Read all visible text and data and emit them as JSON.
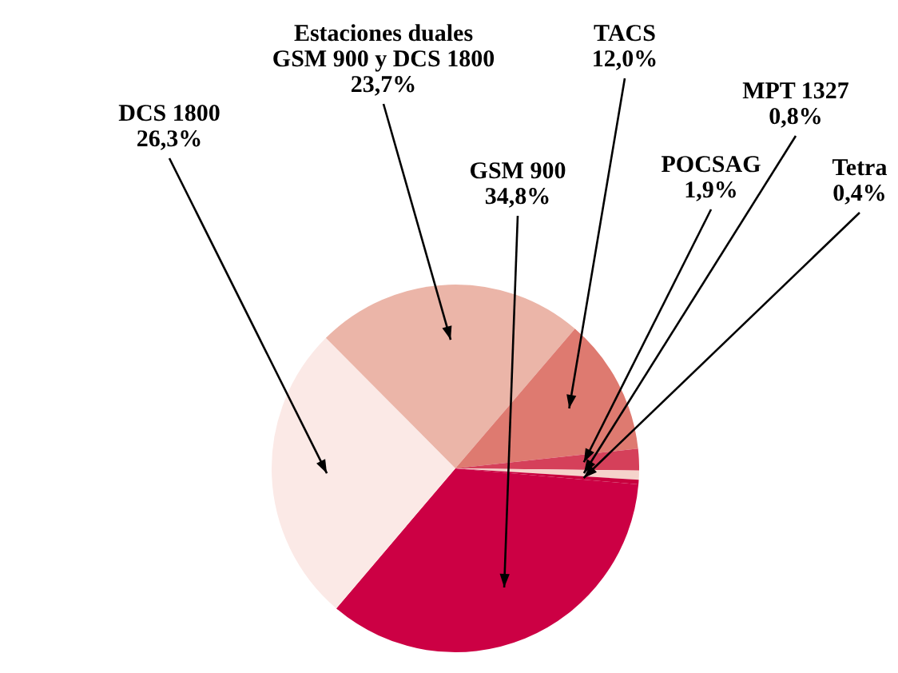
{
  "chart_data": {
    "type": "pie",
    "categories": [
      "GSM 900",
      "DCS 1800",
      "Estaciones duales GSM 900 y DCS 1800",
      "TACS",
      "POCSAG",
      "MPT 1327",
      "Tetra"
    ],
    "values": [
      34.8,
      26.3,
      23.7,
      12.0,
      1.9,
      0.8,
      0.4
    ],
    "value_labels": [
      "34,8%",
      "26,3%",
      "23,7%",
      "12,0%",
      "1,9%",
      "0,8%",
      "0,4%"
    ],
    "colors": [
      "#cc0044",
      "#fbe9e6",
      "#ebb5a8",
      "#de7a70",
      "#d5405a",
      "#f5d3cb",
      "#c8003e"
    ],
    "legend": false
  }
}
